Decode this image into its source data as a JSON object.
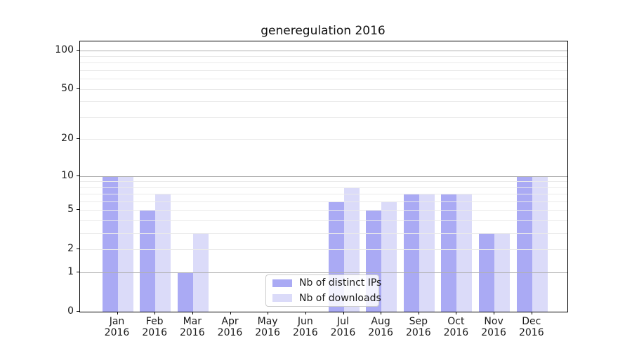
{
  "figure": {
    "title": "generegulation 2016"
  },
  "chart_data": {
    "type": "bar",
    "title": "generegulation 2016",
    "categories": [
      "Jan",
      "Feb",
      "Mar",
      "Apr",
      "May",
      "Jun",
      "Jul",
      "Aug",
      "Sep",
      "Oct",
      "Nov",
      "Dec"
    ],
    "x_year": "2016",
    "series": [
      {
        "name": "Nb of distinct IPs",
        "color": "#aaaaf4",
        "values": [
          10,
          5,
          1,
          0,
          0,
          0,
          6,
          5,
          7,
          7,
          3,
          10
        ]
      },
      {
        "name": "Nb of downloads",
        "color": "#dbdbf9",
        "values": [
          10,
          7,
          3,
          0,
          0,
          0,
          8,
          6,
          7,
          7,
          3,
          10
        ]
      }
    ],
    "yscale": "log1p",
    "ylim": [
      0,
      117
    ],
    "y_tick_labels": [
      0,
      1,
      2,
      5,
      10,
      20,
      50,
      100
    ],
    "y_major_gridlines": [
      1,
      10,
      100
    ],
    "y_minor_gridlines": [
      2,
      3,
      4,
      5,
      6,
      7,
      8,
      9,
      20,
      30,
      40,
      50,
      60,
      70,
      80,
      90
    ],
    "grid": true,
    "legend": {
      "position": "lower center",
      "items": [
        "Nb of distinct IPs",
        "Nb of downloads"
      ]
    },
    "colors": {
      "grid_major": "#b0b0b0",
      "grid_minor": "#eaeaea",
      "spine": "#000000",
      "text": "#1a1a1a",
      "legend_border": "#cccccc"
    }
  }
}
